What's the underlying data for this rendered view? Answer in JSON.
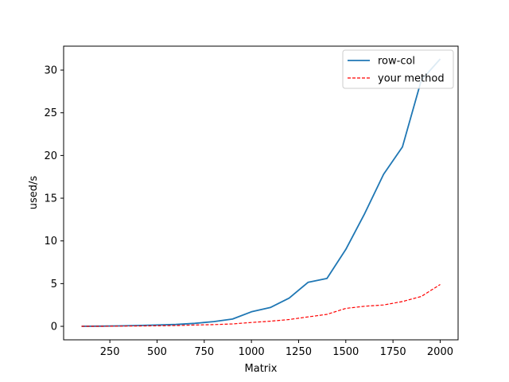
{
  "chart_data": {
    "type": "line",
    "title": "",
    "xlabel": "Matrix",
    "ylabel": "used/s",
    "xlim": [
      5,
      2095
    ],
    "ylim": [
      -1.58,
      32.8
    ],
    "xticks": [
      250,
      500,
      750,
      1000,
      1250,
      1500,
      1750,
      2000
    ],
    "yticks": [
      0,
      5,
      10,
      15,
      20,
      25,
      30
    ],
    "grid": false,
    "legend_position": "top-right",
    "x": [
      100,
      200,
      300,
      400,
      500,
      600,
      700,
      800,
      900,
      1000,
      1100,
      1200,
      1300,
      1400,
      1500,
      1600,
      1700,
      1800,
      1900,
      2000
    ],
    "series": [
      {
        "name": "row-col",
        "color": "#1f77b4",
        "style": "solid",
        "values": [
          0.0,
          0.02,
          0.05,
          0.1,
          0.15,
          0.22,
          0.35,
          0.55,
          0.85,
          1.7,
          2.2,
          3.3,
          5.15,
          5.6,
          9.0,
          13.2,
          17.8,
          21.0,
          28.8,
          31.3
        ]
      },
      {
        "name": "your method",
        "color": "#ff0000",
        "style": "dashed",
        "values": [
          0.0,
          0.0,
          0.02,
          0.04,
          0.06,
          0.1,
          0.15,
          0.2,
          0.28,
          0.45,
          0.6,
          0.8,
          1.1,
          1.4,
          2.1,
          2.35,
          2.5,
          2.9,
          3.5,
          4.9
        ]
      }
    ]
  }
}
